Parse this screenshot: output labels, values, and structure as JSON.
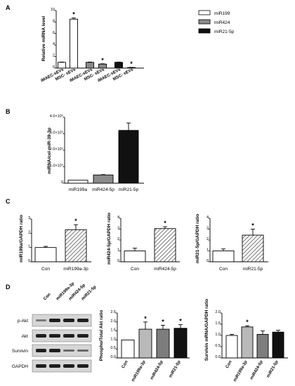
{
  "panels": {
    "A": {
      "letter": "A",
      "ylabel": "Relative miRNA level",
      "yticks": [
        "0",
        "2",
        "4",
        "6",
        "8",
        "10"
      ],
      "ylim": [
        0,
        10
      ],
      "legend": [
        {
          "name": "miR199",
          "color": "#ffffff"
        },
        {
          "name": "miR424",
          "color": "#8a8a8a"
        },
        {
          "name": "miR21-5p",
          "color": "#111111"
        }
      ],
      "categories": [
        "iMAEC-sEVs",
        "MSC- sEVs",
        "iMAEC-sEVs",
        "MSC- sEVs",
        "iMAEC-sEVs",
        "MSC- sEVs"
      ]
    },
    "B": {
      "letter": "B",
      "ylabel": "miRNA/cel-miR-39-3p",
      "yticks": [
        "0",
        "1.0×10⁵",
        "2.0×10⁵",
        "3.0×10⁵",
        "4.0×10⁵"
      ],
      "ylim": [
        0,
        400000
      ],
      "categories": [
        "miR199a",
        "miR424-5p",
        "miR21-5p"
      ]
    },
    "C1": {
      "letter": "C",
      "ylabel": "miR199a/GAPDH ratio",
      "yticks": [
        "0",
        "1",
        "2",
        "3"
      ],
      "ylim": [
        0,
        3
      ],
      "categories": [
        "Con",
        "miR199a-3p"
      ]
    },
    "C2": {
      "ylabel": "miR424-5p/GAPDH ratio",
      "yticks": [
        "0",
        "1",
        "2",
        "3",
        "4"
      ],
      "ylim": [
        0,
        4
      ],
      "categories": [
        "Con",
        "miR424-5p"
      ]
    },
    "C3": {
      "ylabel": "miR21-5p/GAPDH ratio",
      "yticks": [
        "0",
        "1",
        "2",
        "3",
        "4"
      ],
      "ylim": [
        0,
        4
      ],
      "categories": [
        "Con",
        "miR21-5p"
      ]
    },
    "D": {
      "letter": "D",
      "blot_lanes": [
        "Con",
        "miR199a-3p",
        "miR424-5p",
        "miR21-5p"
      ],
      "blot_rows": [
        "p-Akt",
        "Akt",
        "Survivin",
        "GAPDH"
      ],
      "ylabel_akt": "Phospho/Total Akt ratio",
      "yticks_akt": [
        "0.0",
        "0.5",
        "1.0",
        "1.5",
        "2.0",
        "2.5"
      ],
      "ylim_akt": [
        0,
        2.5
      ],
      "ylabel_surv": "Survivin mRNA/GAPDH ratio",
      "yticks_surv": [
        "0.0",
        "0.5",
        "1.0",
        "1.5",
        "2.0"
      ],
      "ylim_surv": [
        0,
        2.0
      ],
      "categories": [
        "Con",
        "miR199a-3p",
        "miR424-5p",
        "miR21-5p"
      ]
    }
  },
  "star": "*",
  "chart_data": [
    {
      "type": "bar",
      "title": "",
      "ylabel": "Relative miRNA level",
      "categories": [
        "iMAEC-sEVs",
        "MSC- sEVs"
      ],
      "ylim": [
        0,
        10
      ],
      "series": [
        {
          "name": "miR199",
          "values": [
            1.0,
            8.5
          ],
          "errors": [
            0.05,
            0.2
          ],
          "significant": [
            false,
            true
          ]
        },
        {
          "name": "miR424",
          "values": [
            1.0,
            0.7
          ],
          "errors": [
            0.05,
            0.05
          ],
          "significant": [
            false,
            true
          ]
        },
        {
          "name": "miR21-5p",
          "values": [
            1.0,
            0.1
          ],
          "errors": [
            0.05,
            0.03
          ],
          "significant": [
            false,
            true
          ]
        }
      ]
    },
    {
      "type": "bar",
      "ylabel": "miRNA/cel-miR-39-3p",
      "categories": [
        "miR199a",
        "miR424-5p",
        "miR21-5p"
      ],
      "values": [
        18000,
        50000,
        320000
      ],
      "errors": [
        0,
        2000,
        45000
      ],
      "ylim": [
        0,
        400000
      ]
    },
    {
      "type": "bar",
      "ylabel": "miR199a/GAPDH ratio",
      "categories": [
        "Con",
        "miR199a-3p"
      ],
      "values": [
        1.0,
        2.25
      ],
      "errors": [
        0.08,
        0.35
      ],
      "significant": [
        false,
        true
      ],
      "ylim": [
        0,
        3
      ]
    },
    {
      "type": "bar",
      "ylabel": "miR424-5p/GAPDH ratio",
      "categories": [
        "Con",
        "miR424-5p"
      ],
      "values": [
        1.0,
        3.05
      ],
      "errors": [
        0.25,
        0.18
      ],
      "significant": [
        false,
        true
      ],
      "ylim": [
        0,
        4
      ]
    },
    {
      "type": "bar",
      "ylabel": "miR21-5p/GAPDH ratio",
      "categories": [
        "Con",
        "miR21-5p"
      ],
      "values": [
        1.0,
        2.45
      ],
      "errors": [
        0.18,
        0.55
      ],
      "significant": [
        false,
        true
      ],
      "ylim": [
        0,
        4
      ]
    },
    {
      "type": "bar",
      "ylabel": "Phospho/Total Akt ratio",
      "categories": [
        "Con",
        "miR199a-3p",
        "miR424-5p",
        "miR21-5p"
      ],
      "values": [
        1.0,
        1.6,
        1.6,
        1.65
      ],
      "errors": [
        0,
        0.4,
        0.22,
        0.2
      ],
      "significant": [
        false,
        true,
        true,
        true
      ],
      "ylim": [
        0,
        2.5
      ]
    },
    {
      "type": "bar",
      "ylabel": "Survivin mRNA/GAPDH ratio",
      "categories": [
        "Con",
        "miR199a-3p",
        "miR424-5p",
        "miR21-5p"
      ],
      "values": [
        1.0,
        1.38,
        1.05,
        1.15
      ],
      "errors": [
        0.05,
        0.05,
        0.15,
        0.08
      ],
      "significant": [
        false,
        true,
        false,
        false
      ],
      "ylim": [
        0,
        2.0
      ]
    }
  ]
}
